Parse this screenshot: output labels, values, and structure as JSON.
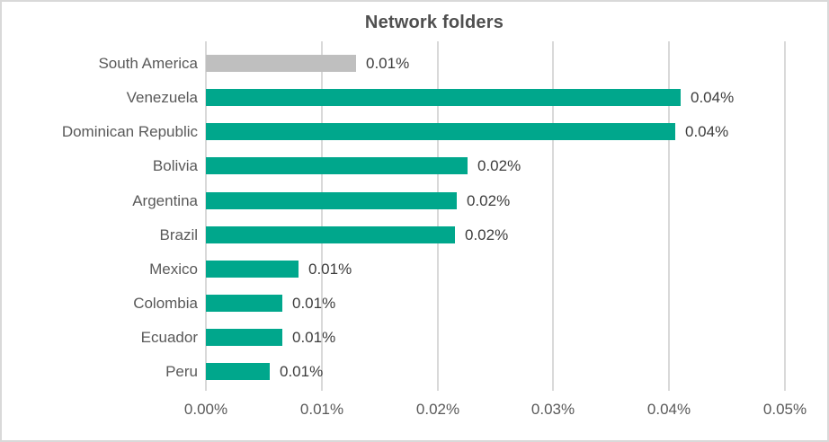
{
  "chart_data": {
    "type": "bar",
    "orientation": "horizontal",
    "title": "Network folders",
    "categories": [
      "South America",
      "Venezuela",
      "Dominican Republic",
      "Bolivia",
      "Argentina",
      "Brazil",
      "Mexico",
      "Colombia",
      "Ecuador",
      "Peru"
    ],
    "values": [
      0.013,
      0.041,
      0.0405,
      0.0226,
      0.0217,
      0.0215,
      0.008,
      0.0066,
      0.0066,
      0.0055
    ],
    "value_labels": [
      "0.01%",
      "0.04%",
      "0.04%",
      "0.02%",
      "0.02%",
      "0.02%",
      "0.01%",
      "0.01%",
      "0.01%",
      "0.01%"
    ],
    "bar_colors": [
      "#bfbfbf",
      "#00a78c",
      "#00a78c",
      "#00a78c",
      "#00a78c",
      "#00a78c",
      "#00a78c",
      "#00a78c",
      "#00a78c",
      "#00a78c"
    ],
    "x_ticks": [
      {
        "label": "0.00%",
        "value": 0
      },
      {
        "label": "0.01%",
        "value": 0.01
      },
      {
        "label": "0.02%",
        "value": 0.02
      },
      {
        "label": "0.03%",
        "value": 0.03
      },
      {
        "label": "0.04%",
        "value": 0.04
      },
      {
        "label": "0.05%",
        "value": 0.05
      }
    ],
    "xlim": [
      0,
      0.05
    ],
    "xlabel": "",
    "ylabel": "",
    "grid": true,
    "legend_position": "none"
  },
  "colors": {
    "accent_teal": "#00a78c",
    "highlight_gray_bar": "#bfbfbf",
    "gridline": "#d9d9d9",
    "frame_border": "#d9d9d9",
    "title_text": "#4f4f4f",
    "category_text": "#595959",
    "value_text": "#3d3d3d",
    "axis_text": "#595959",
    "background": "#ffffff"
  }
}
